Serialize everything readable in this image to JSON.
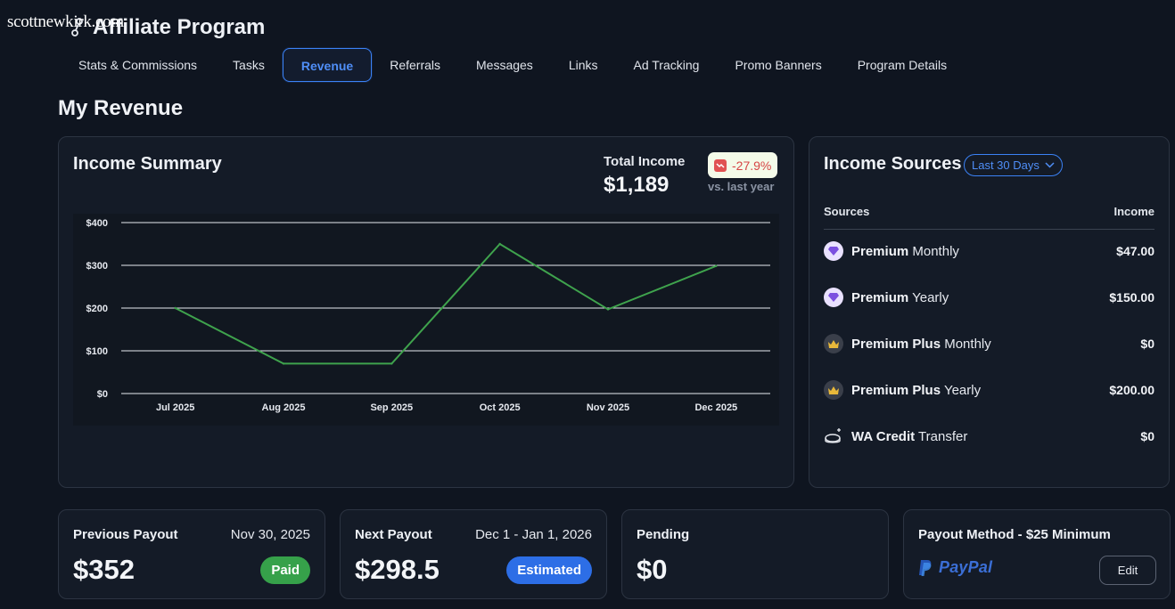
{
  "watermark": "scottnewkirk.com",
  "app": {
    "title": "Affiliate Program"
  },
  "tabs": [
    {
      "label": "Stats & Commissions"
    },
    {
      "label": "Tasks"
    },
    {
      "label": "Revenue",
      "active": true
    },
    {
      "label": "Referrals"
    },
    {
      "label": "Messages"
    },
    {
      "label": "Links"
    },
    {
      "label": "Ad Tracking"
    },
    {
      "label": "Promo Banners"
    },
    {
      "label": "Program Details"
    }
  ],
  "page_title": "My Revenue",
  "income_summary": {
    "title": "Income Summary",
    "total_label": "Total Income",
    "total_value": "$1,189",
    "delta": "-27.9%",
    "delta_sub": "vs. last year"
  },
  "chart_data": {
    "type": "line",
    "categories": [
      "Jul 2025",
      "Aug 2025",
      "Sep 2025",
      "Oct 2025",
      "Nov 2025",
      "Dec 2025"
    ],
    "series": [
      {
        "values": [
          200,
          70,
          70,
          350,
          197,
          298.5
        ]
      }
    ],
    "yticks": [
      "$0",
      "$100",
      "$200",
      "$300",
      "$400"
    ],
    "ylim": [
      0,
      400
    ],
    "grid": true,
    "line_color": "#3fa34d"
  },
  "income_sources": {
    "title": "Income Sources",
    "range": "Last 30 Days",
    "col_source": "Sources",
    "col_income": "Income",
    "rows": [
      {
        "bold": "Premium",
        "rest": "Monthly",
        "amount": "$47.00",
        "icon": "gem-icon"
      },
      {
        "bold": "Premium",
        "rest": "Yearly",
        "amount": "$150.00",
        "icon": "gem-icon"
      },
      {
        "bold": "Premium Plus",
        "rest": "Monthly",
        "amount": "$0",
        "icon": "crown-icon"
      },
      {
        "bold": "Premium Plus",
        "rest": "Yearly",
        "amount": "$200.00",
        "icon": "crown-icon"
      },
      {
        "bold": "WA Credit",
        "rest": "Transfer",
        "amount": "$0",
        "icon": "coin-icon"
      }
    ]
  },
  "payouts": {
    "previous": {
      "title": "Previous Payout",
      "date": "Nov 30, 2025",
      "value": "$352",
      "status": "Paid"
    },
    "next": {
      "title": "Next Payout",
      "date": "Dec 1 - Jan 1, 2026",
      "value": "$298.5",
      "status": "Estimated"
    },
    "pending": {
      "title": "Pending",
      "value": "$0"
    },
    "method": {
      "title": "Payout Method - $25 Minimum",
      "provider": "PayPal",
      "edit": "Edit"
    }
  },
  "colors": {
    "accent": "#3b82f6",
    "paid": "#36a14a",
    "estimated": "#2d6ee6",
    "negative": "#d64545"
  }
}
